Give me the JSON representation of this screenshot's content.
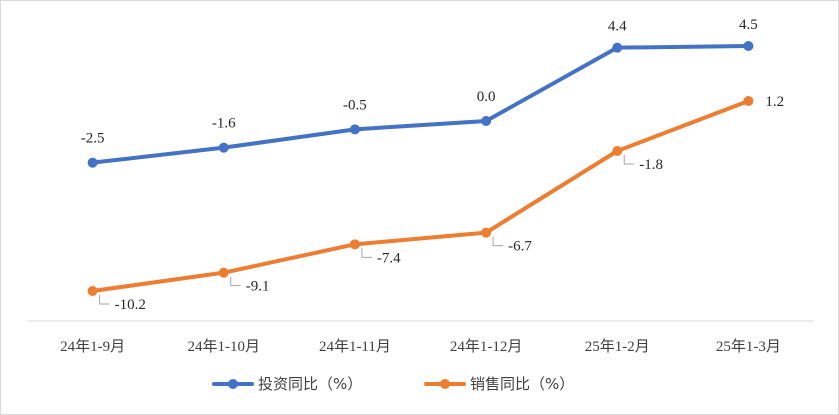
{
  "chart_data": {
    "type": "line",
    "categories": [
      "24年1-9月",
      "24年1-10月",
      "24年1-11月",
      "24年1-12月",
      "25年1-2月",
      "25年1-3月"
    ],
    "series": [
      {
        "name": "投资同比（%）",
        "values": [
          -2.5,
          -1.6,
          -0.5,
          0.0,
          4.4,
          4.5
        ],
        "labels": [
          "-2.5",
          "-1.6",
          "-0.5",
          "0.0",
          "4.4",
          "4.5"
        ],
        "color": "#4472c4",
        "label_position": "above"
      },
      {
        "name": "销售同比（%）",
        "values": [
          -10.2,
          -9.1,
          -7.4,
          -6.7,
          -1.8,
          1.2
        ],
        "labels": [
          "-10.2",
          "-9.1",
          "-7.4",
          "-6.7",
          "-1.8",
          "1.2"
        ],
        "color": "#ed7d31",
        "label_position": "below-right"
      }
    ],
    "ylim": [
      -12,
      6
    ],
    "title": "",
    "xlabel": "",
    "ylabel": "",
    "grid": false,
    "legend": "bottom"
  }
}
